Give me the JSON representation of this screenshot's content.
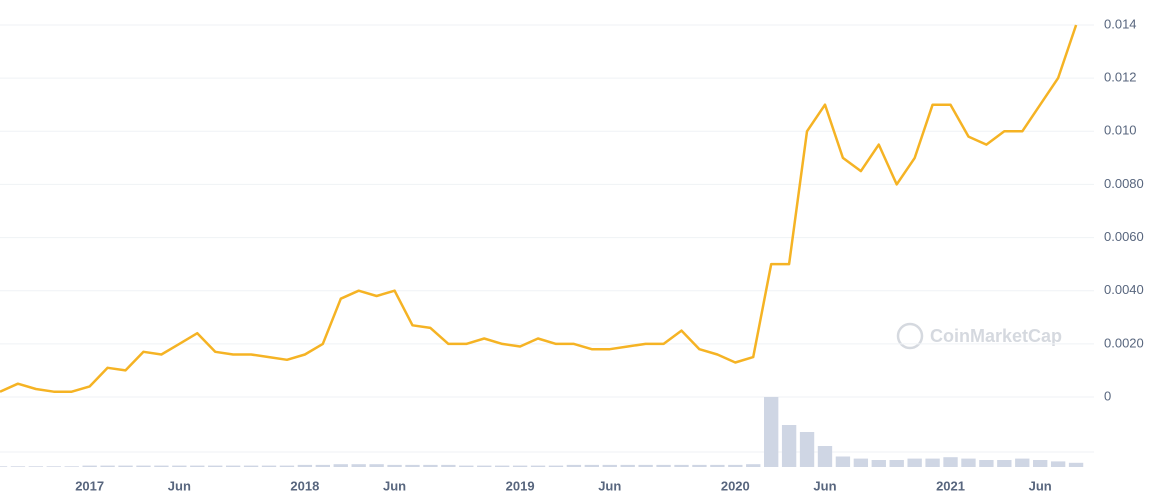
{
  "chart_data": {
    "type": "line",
    "watermark": "CoinMarketCap",
    "x": [
      "2016-08",
      "2016-09",
      "2016-10",
      "2016-11",
      "2016-12",
      "2017-01",
      "2017-02",
      "2017-03",
      "2017-04",
      "2017-05",
      "2017-06",
      "2017-07",
      "2017-08",
      "2017-09",
      "2017-10",
      "2017-11",
      "2017-12",
      "2018-01",
      "2018-02",
      "2018-03",
      "2018-04",
      "2018-05",
      "2018-06",
      "2018-07",
      "2018-08",
      "2018-09",
      "2018-10",
      "2018-11",
      "2018-12",
      "2019-01",
      "2019-02",
      "2019-03",
      "2019-04",
      "2019-05",
      "2019-06",
      "2019-07",
      "2019-08",
      "2019-09",
      "2019-10",
      "2019-11",
      "2019-12",
      "2020-01",
      "2020-02",
      "2020-03",
      "2020-04",
      "2020-05",
      "2020-06",
      "2020-07",
      "2020-08",
      "2020-09",
      "2020-10",
      "2020-11",
      "2020-12",
      "2021-01",
      "2021-02",
      "2021-03",
      "2021-04",
      "2021-05",
      "2021-06",
      "2021-07",
      "2021-08"
    ],
    "series": [
      {
        "color": "#f5b324",
        "values": [
          0.0002,
          0.0005,
          0.0003,
          0.0002,
          0.0002,
          0.0004,
          0.0011,
          0.001,
          0.0017,
          0.0016,
          0.002,
          0.0024,
          0.0017,
          0.0016,
          0.0016,
          0.0015,
          0.0014,
          0.0016,
          0.002,
          0.0037,
          0.004,
          0.0038,
          0.004,
          0.0027,
          0.0026,
          0.002,
          0.002,
          0.0022,
          0.002,
          0.0019,
          0.0022,
          0.002,
          0.002,
          0.0018,
          0.0018,
          0.0019,
          0.002,
          0.002,
          0.0025,
          0.0018,
          0.0016,
          0.0013,
          0.0015,
          0.005,
          0.005,
          0.01,
          0.011,
          0.009,
          0.0085,
          0.0095,
          0.008,
          0.009,
          0.011,
          0.011,
          0.0098,
          0.0095,
          0.01,
          0.01,
          0.011,
          0.012,
          0.014
        ]
      }
    ],
    "volume": {
      "color": "#cfd6e4",
      "values": [
        1,
        1,
        1,
        1,
        1,
        2,
        2,
        2,
        2,
        2,
        2,
        2,
        2,
        2,
        2,
        2,
        2,
        3,
        3,
        4,
        4,
        4,
        3,
        3,
        3,
        3,
        2,
        2,
        2,
        2,
        2,
        2,
        3,
        3,
        3,
        3,
        3,
        3,
        3,
        3,
        3,
        3,
        4,
        100,
        60,
        50,
        30,
        15,
        12,
        10,
        10,
        12,
        12,
        14,
        12,
        10,
        10,
        12,
        10,
        8,
        6
      ],
      "lim": [
        0,
        100
      ]
    },
    "xlim": [
      "2016-08",
      "2021-09"
    ],
    "xticks": [
      {
        "value": "2017-01",
        "label": "2017"
      },
      {
        "value": "2017-06",
        "label": "Jun"
      },
      {
        "value": "2018-01",
        "label": "2018"
      },
      {
        "value": "2018-06",
        "label": "Jun"
      },
      {
        "value": "2019-01",
        "label": "2019"
      },
      {
        "value": "2019-06",
        "label": "Jun"
      },
      {
        "value": "2020-01",
        "label": "2020"
      },
      {
        "value": "2020-06",
        "label": "Jun"
      },
      {
        "value": "2021-01",
        "label": "2021"
      },
      {
        "value": "2021-06",
        "label": "Jun"
      }
    ],
    "ylim": [
      0,
      0.014
    ],
    "yticks": [
      0,
      {
        "value": 0.002,
        "label": "0.0020"
      },
      {
        "value": 0.004,
        "label": "0.0040"
      },
      {
        "value": 0.006,
        "label": "0.0060"
      },
      {
        "value": 0.008,
        "label": "0.0080"
      },
      {
        "value": 0.01,
        "label": "0.010"
      },
      0.012,
      0.014
    ],
    "grid": true
  }
}
